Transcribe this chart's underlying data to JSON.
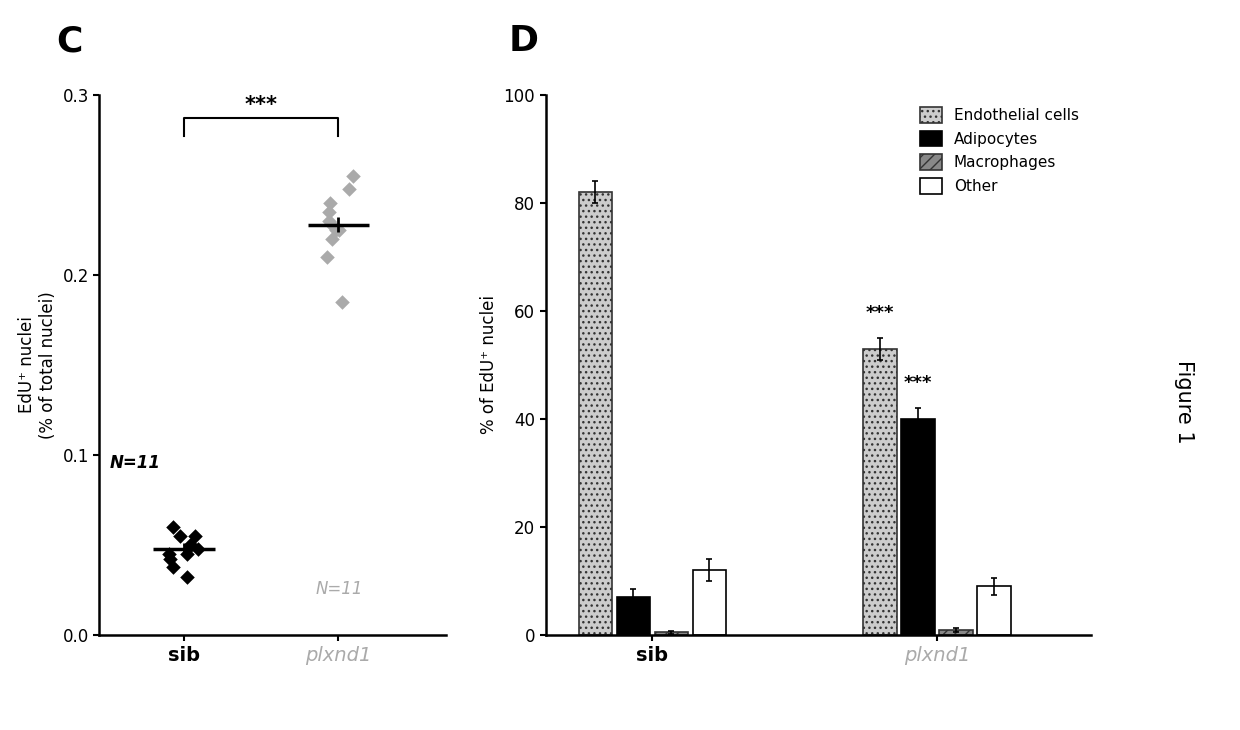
{
  "panel_C": {
    "label": "C",
    "ylabel": "EdU⁺ nuclei\n(% of total nuclei)",
    "ylim": [
      0,
      0.3
    ],
    "yticks": [
      0,
      0.1,
      0.2,
      0.3
    ],
    "xtick_labels": [
      "sib",
      "plxnd1"
    ],
    "sib_data": [
      0.055,
      0.048,
      0.05,
      0.045,
      0.038,
      0.06,
      0.042,
      0.055,
      0.032,
      0.05,
      0.045
    ],
    "sib_mean": 0.048,
    "sib_sem": 0.003,
    "plxnd1_data": [
      0.255,
      0.248,
      0.24,
      0.235,
      0.23,
      0.228,
      0.225,
      0.225,
      0.22,
      0.185,
      0.21
    ],
    "plxnd1_mean": 0.228,
    "plxnd1_sem": 0.004,
    "sib_color": "#000000",
    "plxnd1_color": "#aaaaaa",
    "n_label_sib": "N=11",
    "n_label_plxnd1": "N=11",
    "significance": "***"
  },
  "panel_D": {
    "label": "D",
    "ylabel": "% of EdU⁺ nuclei",
    "ylim": [
      0,
      100
    ],
    "yticks": [
      0,
      20,
      40,
      60,
      80,
      100
    ],
    "xtick_labels": [
      "sib",
      "plxnd1"
    ],
    "categories": [
      "Endothelial cells",
      "Adipocytes",
      "Macrophages",
      "Other"
    ],
    "bar_colors": [
      "#cccccc",
      "#000000",
      "#888888",
      "#ffffff"
    ],
    "bar_hatches": [
      "...",
      "",
      "///",
      ""
    ],
    "bar_edgecolors": [
      "#333333",
      "#000000",
      "#333333",
      "#000000"
    ],
    "sib_values": [
      82,
      7,
      0.5,
      12
    ],
    "sib_errors": [
      2.0,
      1.5,
      0.3,
      2.0
    ],
    "plxnd1_values": [
      53,
      40,
      1.0,
      9
    ],
    "plxnd1_errors": [
      2.0,
      2.0,
      0.4,
      1.5
    ],
    "significance_endothelial": "***",
    "significance_adipocytes": "***"
  },
  "figure_label": "Figure 1",
  "background_color": "#ffffff"
}
